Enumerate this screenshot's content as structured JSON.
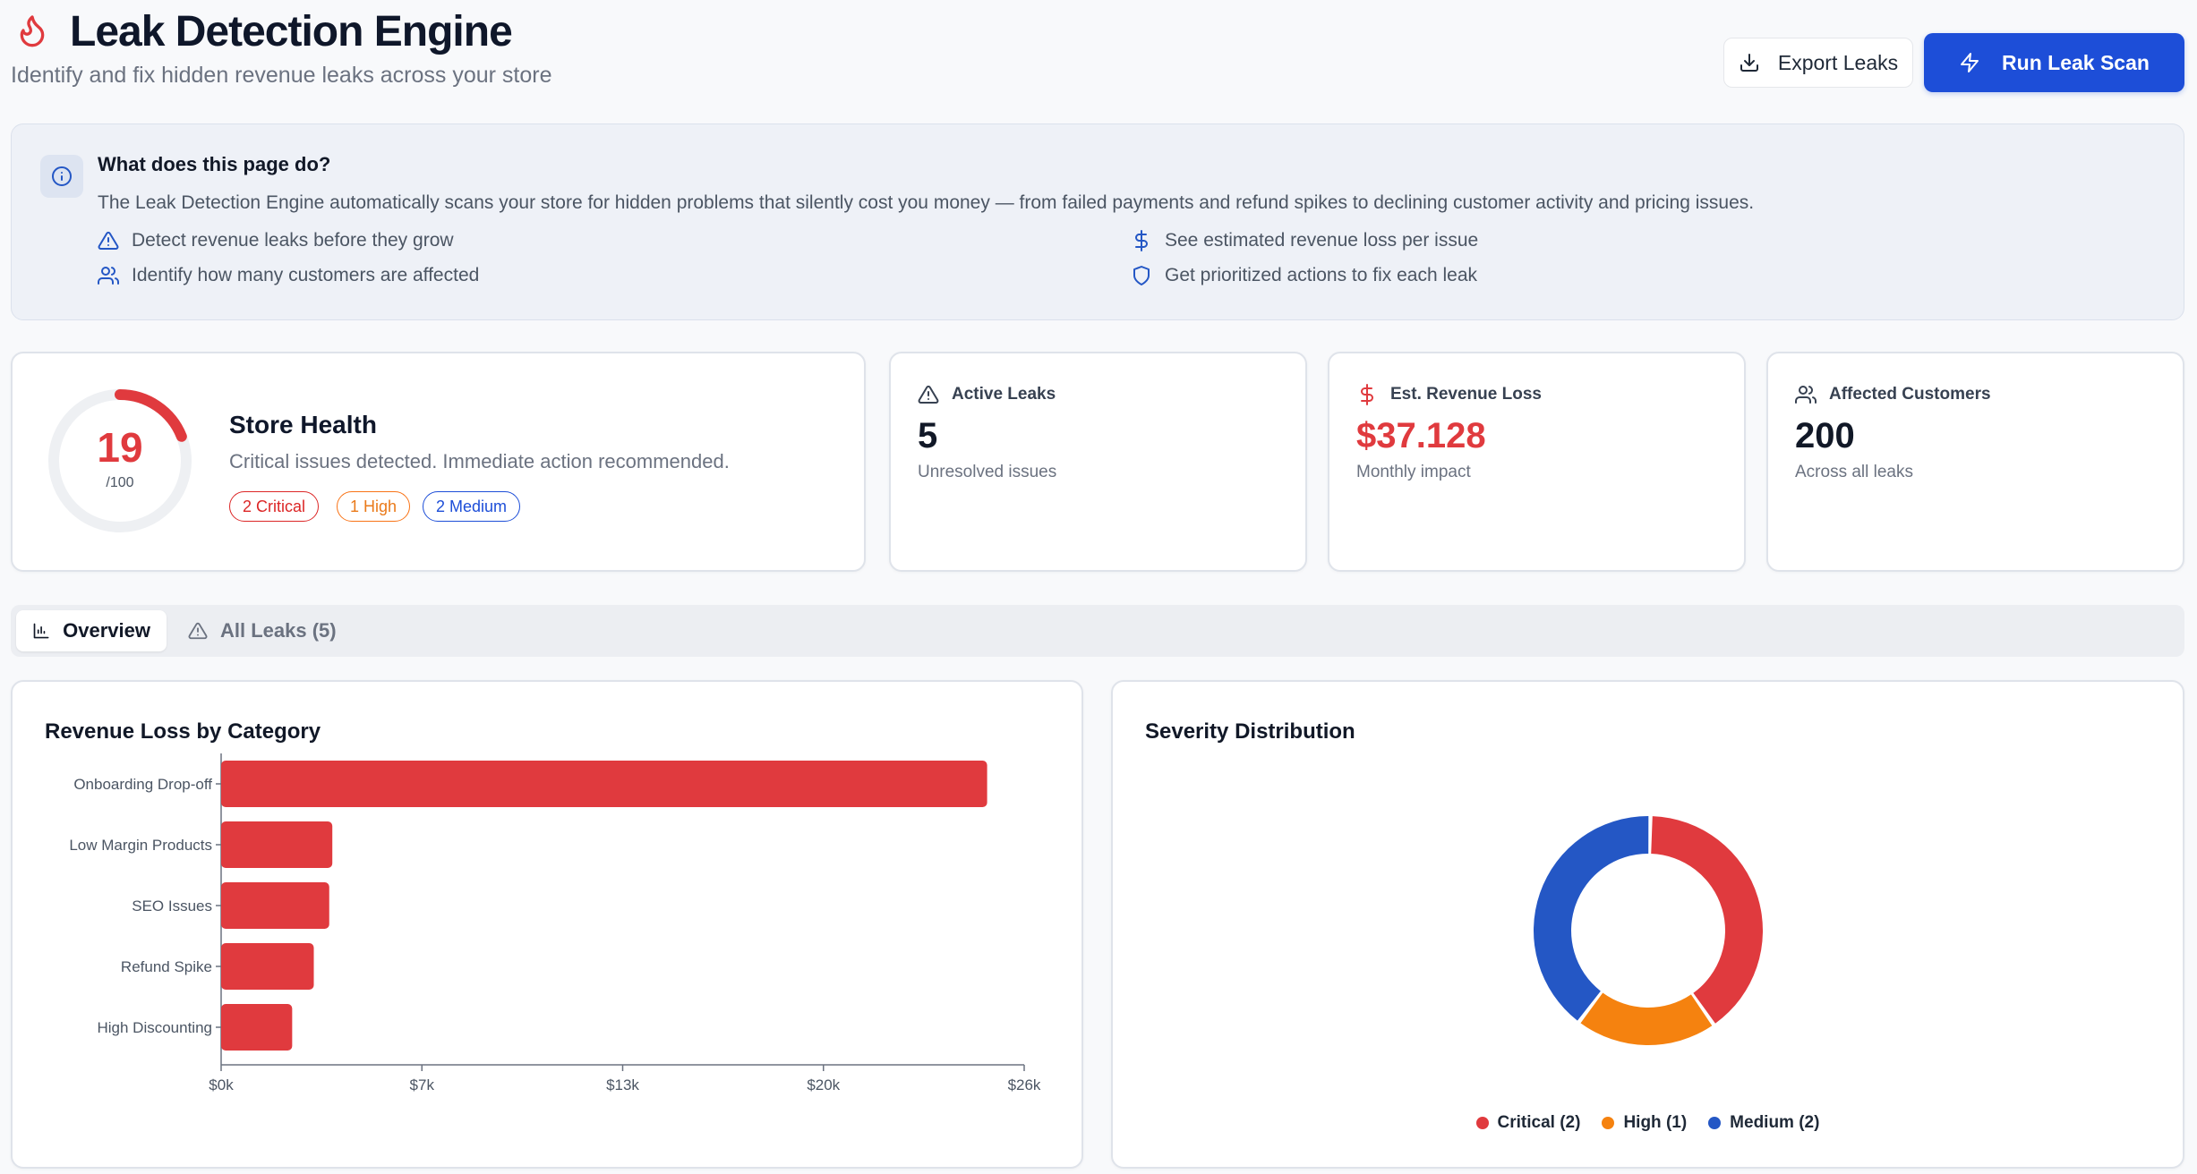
{
  "header": {
    "title": "Leak Detection Engine",
    "subtitle": "Identify and fix hidden revenue leaks across your store",
    "export_label": "Export Leaks",
    "run_label": "Run Leak Scan"
  },
  "info": {
    "title": "What does this page do?",
    "description": "The Leak Detection Engine automatically scans your store for hidden problems that silently cost you money — from failed payments and refund spikes to declining customer activity and pricing issues.",
    "features": [
      "Detect revenue leaks before they grow",
      "Identify how many customers are affected",
      "See estimated revenue loss per issue",
      "Get prioritized actions to fix each leak"
    ]
  },
  "health": {
    "score": "19",
    "score_max": "/100",
    "score_fraction": 0.19,
    "title": "Store Health",
    "description": "Critical issues detected. Immediate action recommended.",
    "badges": [
      "2 Critical",
      "1 High",
      "2 Medium"
    ]
  },
  "stats": [
    {
      "label": "Active Leaks",
      "value": "5",
      "sub": "Unresolved issues"
    },
    {
      "label": "Est. Revenue Loss",
      "value": "$37.128",
      "sub": "Monthly impact"
    },
    {
      "label": "Affected Customers",
      "value": "200",
      "sub": "Across all leaks"
    }
  ],
  "tabs": {
    "overview": "Overview",
    "all_leaks": "All Leaks (5)"
  },
  "colors": {
    "critical": "#e03a3e",
    "high": "#f5820f",
    "medium": "#2457c5",
    "primary": "#1d4ed8"
  },
  "chart_data": [
    {
      "type": "bar",
      "orientation": "horizontal",
      "title": "Revenue Loss by Category",
      "categories": [
        "Onboarding Drop-off",
        "Low Margin Products",
        "SEO Issues",
        "Refund Spike",
        "High Discounting"
      ],
      "values": [
        24800,
        3600,
        3500,
        3000,
        2300
      ],
      "xticks": [
        "$0k",
        "$7k",
        "$13k",
        "$20k",
        "$26k"
      ],
      "xlim": [
        0,
        26000
      ],
      "color": "#e03a3e"
    },
    {
      "type": "pie",
      "variant": "donut",
      "title": "Severity Distribution",
      "series": [
        {
          "name": "Critical (2)",
          "value": 2,
          "color": "#e03a3e"
        },
        {
          "name": "High (1)",
          "value": 1,
          "color": "#f5820f"
        },
        {
          "name": "Medium (2)",
          "value": 2,
          "color": "#2457c5"
        }
      ]
    }
  ]
}
